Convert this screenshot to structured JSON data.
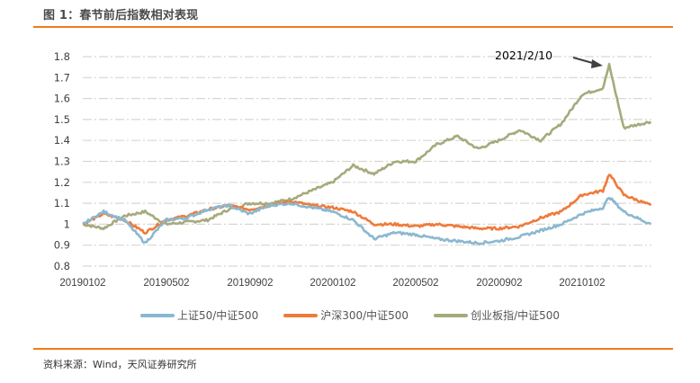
{
  "figure": {
    "title": "图 1：春节前后指数相对表现",
    "source": "资料来源：Wind，天风证券研究所",
    "accent_color": "#ED7D18"
  },
  "chart_data": {
    "type": "line",
    "title": "春节前后指数相对表现",
    "xlabel": "",
    "ylabel": "",
    "ylim": [
      0.8,
      1.8
    ],
    "yticks": [
      "1.8",
      "1.7",
      "1.6",
      "1.5",
      "1.4",
      "1.3",
      "1.2",
      "1.1",
      "1",
      "0.9",
      "0.8"
    ],
    "xticks": [
      "20190102",
      "20190502",
      "20190902",
      "20200102",
      "20200502",
      "20200902",
      "20210102"
    ],
    "grid": true,
    "legend_position": "bottom",
    "annotation": {
      "text": "2021/2/10",
      "arrow_to": "创业板指/中证500 peak"
    },
    "x": [
      "2019-01",
      "2019-02",
      "2019-03",
      "2019-04",
      "2019-05",
      "2019-06",
      "2019-07",
      "2019-08",
      "2019-09",
      "2019-10",
      "2019-11",
      "2019-12",
      "2020-01",
      "2020-02",
      "2020-03",
      "2020-04",
      "2020-05",
      "2020-06",
      "2020-07",
      "2020-08",
      "2020-09",
      "2020-10",
      "2020-11",
      "2020-12",
      "2021-01",
      "2021-02",
      "2021-02-10",
      "2021-03",
      "2021-04"
    ],
    "series": [
      {
        "name": "上证50/中证500",
        "color": "#8AB8D0",
        "values": [
          1.0,
          1.06,
          1.02,
          0.91,
          1.02,
          1.03,
          1.07,
          1.09,
          1.05,
          1.09,
          1.1,
          1.08,
          1.06,
          1.02,
          0.93,
          0.96,
          0.95,
          0.93,
          0.92,
          0.91,
          0.92,
          0.94,
          0.97,
          1.0,
          1.05,
          1.08,
          1.13,
          1.06,
          1.0
        ]
      },
      {
        "name": "沪深300/中证500",
        "color": "#EF7A3A",
        "values": [
          1.0,
          1.05,
          1.02,
          0.96,
          1.02,
          1.04,
          1.07,
          1.09,
          1.07,
          1.09,
          1.11,
          1.09,
          1.08,
          1.06,
          1.0,
          1.0,
          0.99,
          1.0,
          0.99,
          0.98,
          0.98,
          0.99,
          1.03,
          1.06,
          1.14,
          1.16,
          1.24,
          1.14,
          1.09
        ]
      },
      {
        "name": "创业板指/中证500",
        "color": "#A6AA7C",
        "values": [
          1.0,
          0.98,
          1.04,
          1.06,
          1.0,
          1.01,
          1.02,
          1.07,
          1.1,
          1.1,
          1.12,
          1.16,
          1.2,
          1.28,
          1.24,
          1.3,
          1.3,
          1.38,
          1.42,
          1.36,
          1.4,
          1.45,
          1.4,
          1.48,
          1.62,
          1.65,
          1.76,
          1.46,
          1.49
        ]
      }
    ]
  },
  "legend": [
    {
      "label": "上证50/中证500",
      "color": "#8AB8D0"
    },
    {
      "label": "沪深300/中证500",
      "color": "#EF7A3A"
    },
    {
      "label": "创业板指/中证500",
      "color": "#A6AA7C"
    }
  ]
}
